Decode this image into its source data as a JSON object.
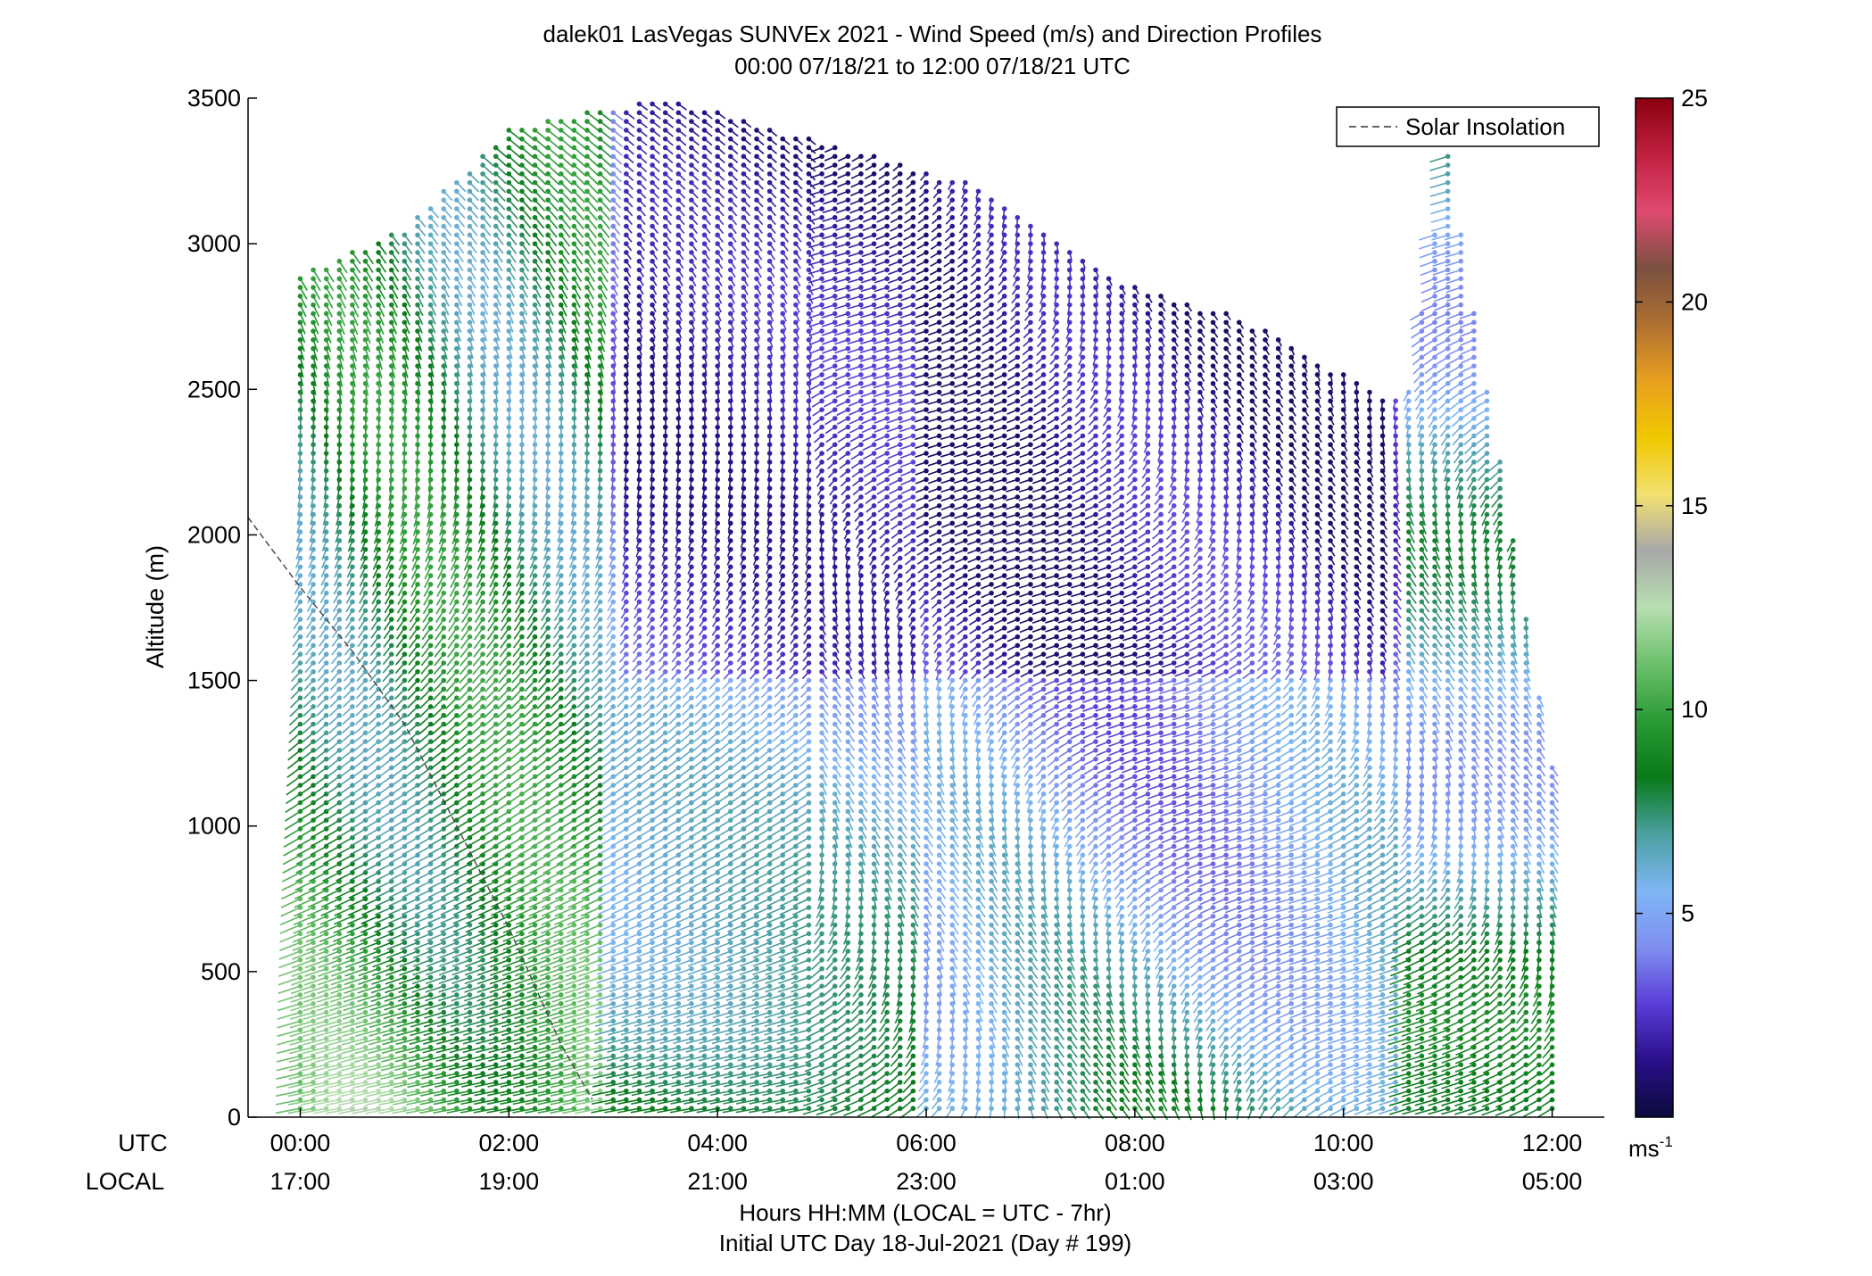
{
  "chart_data": {
    "type": "wind_barb_profile",
    "title": "dalek01 LasVegas SUNVEx 2021 - Wind Speed (m/s) and Direction Profiles",
    "subtitle": "00:00 07/18/21 to 12:00 07/18/21  UTC",
    "ylabel": "Altitude (m)",
    "xlabel": "Hours HH:MM  (LOCAL = UTC - 7hr)",
    "xlabel2": "Initial UTC Day 18-Jul-2021 (Day # 199)",
    "utc_row_label": "UTC",
    "local_row_label": "LOCAL",
    "xlim_hours": [
      -0.5,
      12.5
    ],
    "ylim": [
      0,
      3500
    ],
    "yticks": [
      0,
      500,
      1000,
      1500,
      2000,
      2500,
      3000,
      3500
    ],
    "xticks": [
      {
        "hour": 0,
        "utc": "00:00",
        "local": "17:00"
      },
      {
        "hour": 2,
        "utc": "02:00",
        "local": "19:00"
      },
      {
        "hour": 4,
        "utc": "04:00",
        "local": "21:00"
      },
      {
        "hour": 6,
        "utc": "06:00",
        "local": "23:00"
      },
      {
        "hour": 8,
        "utc": "08:00",
        "local": "01:00"
      },
      {
        "hour": 10,
        "utc": "10:00",
        "local": "03:00"
      },
      {
        "hour": 12,
        "utc": "12:00",
        "local": "05:00"
      }
    ],
    "legend": {
      "label": "Solar Insolation",
      "style": "dashed",
      "position": "top-right"
    },
    "colorbar": {
      "unit": "ms",
      "unit_exp": "-1",
      "range": [
        0,
        25
      ],
      "ticks": [
        5,
        10,
        15,
        20,
        25
      ],
      "colors": [
        "#0b0b3b",
        "#2a0f8a",
        "#5a3dd8",
        "#7f8ff0",
        "#7fb6f5",
        "#4aa0a0",
        "#0a7a1a",
        "#2a9a35",
        "#6cc06c",
        "#b7dfb0",
        "#a8a8a8",
        "#f2e070",
        "#f0c800",
        "#e8a020",
        "#b07030",
        "#7a5040",
        "#e04a70",
        "#c02040",
        "#8a0010"
      ]
    },
    "solar_insolation": [
      {
        "hour": -0.5,
        "altitude": 2060
      },
      {
        "hour": 0.0,
        "altitude": 1820
      },
      {
        "hour": 0.5,
        "altitude": 1600
      },
      {
        "hour": 1.0,
        "altitude": 1350
      },
      {
        "hour": 1.5,
        "altitude": 1000
      },
      {
        "hour": 2.0,
        "altitude": 650
      },
      {
        "hour": 2.5,
        "altitude": 250
      },
      {
        "hour": 2.8,
        "altitude": 60
      }
    ],
    "profiles": {
      "hours_start": 0.0,
      "hours_step": 0.125,
      "hours_count": 97,
      "altitude_step": 30,
      "top_altitude": [
        {
          "hour": 0.0,
          "altitude": 2900
        },
        {
          "hour": 1.0,
          "altitude": 3050
        },
        {
          "hour": 2.0,
          "altitude": 3400
        },
        {
          "hour": 3.5,
          "altitude": 3500
        },
        {
          "hour": 5.0,
          "altitude": 3350
        },
        {
          "hour": 6.5,
          "altitude": 3200
        },
        {
          "hour": 8.0,
          "altitude": 2850
        },
        {
          "hour": 9.0,
          "altitude": 2750
        },
        {
          "hour": 10.0,
          "altitude": 2550
        },
        {
          "hour": 10.6,
          "altitude": 2450
        },
        {
          "hour": 11.0,
          "altitude": 3300
        },
        {
          "hour": 12.0,
          "altitude": 1200
        }
      ],
      "description_speed": [
        {
          "region": "00:00-03:00 below 1000 m",
          "speed_range": [
            7,
            13
          ]
        },
        {
          "region": "03:00-10:00 above 1500 m",
          "speed_range": [
            1,
            5
          ]
        },
        {
          "region": "06:00-12:00 below 500 m",
          "speed_range": [
            3,
            8
          ]
        }
      ]
    }
  }
}
